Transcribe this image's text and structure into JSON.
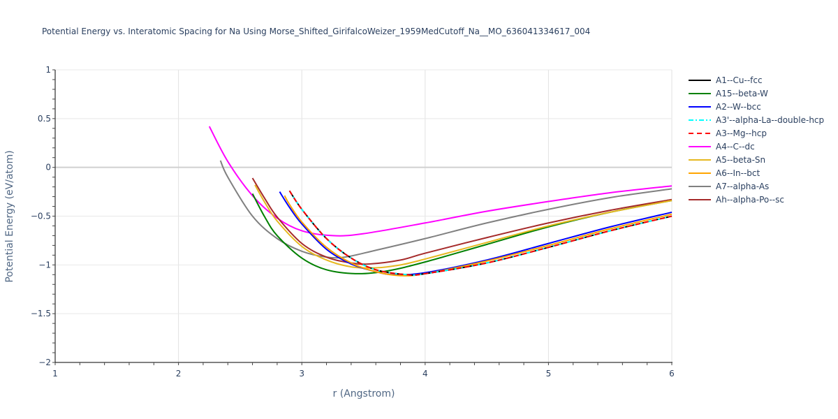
{
  "title": "Potential Energy vs. Interatomic Spacing for Na Using Morse_Shifted_GirifalcoWeizer_1959MedCutoff_Na__MO_636041334617_004",
  "chart_data": {
    "type": "line",
    "title": "Potential Energy vs. Interatomic Spacing for Na Using Morse_Shifted_GirifalcoWeizer_1959MedCutoff_Na__MO_636041334617_004",
    "xlabel": "r (Angstrom)",
    "ylabel": "Potential Energy (eV/atom)",
    "xlim": [
      1,
      6
    ],
    "ylim": [
      -2,
      1
    ],
    "xticks": [
      "1",
      "2",
      "3",
      "4",
      "5",
      "6"
    ],
    "yticks": [
      "1",
      "0.5",
      "0",
      "−0.5",
      "−1",
      "−1.5",
      "−2"
    ],
    "grid": true,
    "legend_position": "right",
    "series": [
      {
        "name": "A1--Cu--fcc",
        "color": "#000000",
        "dash": "solid",
        "x": [
          2.9,
          3.0,
          3.2,
          3.4,
          3.6,
          3.85,
          4.0,
          4.5,
          5.0,
          5.5,
          6.0
        ],
        "y": [
          -0.24,
          -0.43,
          -0.73,
          -0.93,
          -1.05,
          -1.1,
          -1.09,
          -0.98,
          -0.82,
          -0.65,
          -0.5
        ]
      },
      {
        "name": "A15--beta-W",
        "color": "#008000",
        "dash": "solid",
        "x": [
          2.6,
          2.7,
          2.8,
          3.0,
          3.2,
          3.45,
          3.7,
          4.0,
          4.5,
          5.0,
          5.5,
          6.0
        ],
        "y": [
          -0.27,
          -0.51,
          -0.7,
          -0.93,
          -1.05,
          -1.09,
          -1.06,
          -0.97,
          -0.79,
          -0.61,
          -0.46,
          -0.34
        ]
      },
      {
        "name": "A2--W--bcc",
        "color": "#0000ff",
        "dash": "solid",
        "x": [
          2.82,
          2.9,
          3.0,
          3.2,
          3.4,
          3.6,
          3.75,
          4.0,
          4.5,
          5.0,
          5.5,
          6.0
        ],
        "y": [
          -0.25,
          -0.41,
          -0.58,
          -0.84,
          -0.99,
          -1.07,
          -1.1,
          -1.08,
          -0.95,
          -0.78,
          -0.61,
          -0.46
        ]
      },
      {
        "name": "A3'--alpha-La--double-hcp",
        "color": "#00ffff",
        "dash": "dashdot",
        "x": [
          2.9,
          3.0,
          3.2,
          3.4,
          3.6,
          3.85,
          4.0,
          4.5,
          5.0,
          5.5,
          6.0
        ],
        "y": [
          -0.24,
          -0.43,
          -0.73,
          -0.93,
          -1.05,
          -1.1,
          -1.09,
          -0.98,
          -0.82,
          -0.65,
          -0.5
        ]
      },
      {
        "name": "A3--Mg--hcp",
        "color": "#ff0000",
        "dash": "dash",
        "x": [
          2.9,
          3.0,
          3.2,
          3.4,
          3.6,
          3.85,
          4.0,
          4.5,
          5.0,
          5.5,
          6.0
        ],
        "y": [
          -0.24,
          -0.43,
          -0.73,
          -0.93,
          -1.05,
          -1.1,
          -1.09,
          -0.98,
          -0.82,
          -0.65,
          -0.5
        ]
      },
      {
        "name": "A4--C--dc",
        "color": "#ff00ff",
        "dash": "solid",
        "x": [
          2.25,
          2.4,
          2.6,
          2.8,
          3.0,
          3.25,
          3.5,
          4.0,
          4.5,
          5.0,
          5.5,
          6.0
        ],
        "y": [
          0.42,
          0.06,
          -0.29,
          -0.52,
          -0.65,
          -0.7,
          -0.68,
          -0.57,
          -0.45,
          -0.35,
          -0.26,
          -0.19
        ]
      },
      {
        "name": "A5--beta-Sn",
        "color": "#e6b820",
        "dash": "solid",
        "x": [
          2.62,
          2.7,
          2.8,
          3.0,
          3.2,
          3.4,
          3.6,
          3.8,
          4.0,
          4.5,
          5.0,
          5.5,
          6.0
        ],
        "y": [
          -0.18,
          -0.36,
          -0.55,
          -0.81,
          -0.95,
          -1.02,
          -1.03,
          -1.0,
          -0.94,
          -0.77,
          -0.6,
          -0.46,
          -0.34
        ]
      },
      {
        "name": "A6--In--bct",
        "color": "#ffa500",
        "dash": "solid",
        "x": [
          2.86,
          2.9,
          3.0,
          3.2,
          3.4,
          3.6,
          3.8,
          4.0,
          4.5,
          5.0,
          5.5,
          6.0
        ],
        "y": [
          -0.29,
          -0.38,
          -0.56,
          -0.82,
          -0.98,
          -1.07,
          -1.11,
          -1.09,
          -0.96,
          -0.8,
          -0.63,
          -0.48
        ]
      },
      {
        "name": "A7--alpha-As",
        "color": "#808080",
        "dash": "solid",
        "x": [
          2.34,
          2.4,
          2.6,
          2.8,
          3.0,
          3.2,
          3.35,
          3.6,
          4.0,
          4.5,
          5.0,
          5.5,
          6.0
        ],
        "y": [
          0.07,
          -0.1,
          -0.5,
          -0.73,
          -0.86,
          -0.92,
          -0.92,
          -0.85,
          -0.73,
          -0.57,
          -0.43,
          -0.31,
          -0.22
        ]
      },
      {
        "name": "Ah--alpha-Po--sc",
        "color": "#a52a2a",
        "dash": "solid",
        "x": [
          2.6,
          2.7,
          2.8,
          3.0,
          3.2,
          3.4,
          3.55,
          3.8,
          4.0,
          4.5,
          5.0,
          5.5,
          6.0
        ],
        "y": [
          -0.11,
          -0.32,
          -0.51,
          -0.78,
          -0.92,
          -0.98,
          -0.99,
          -0.95,
          -0.88,
          -0.72,
          -0.57,
          -0.44,
          -0.33
        ]
      }
    ]
  }
}
